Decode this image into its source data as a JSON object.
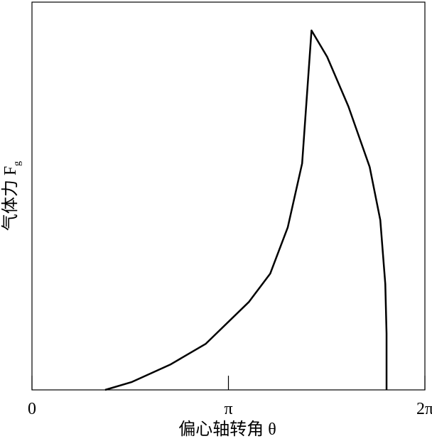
{
  "chart_data": {
    "type": "line",
    "x_label": "偏心轴转角 θ",
    "y_label": "气体力 F",
    "y_label_subscript": "g",
    "xlim": [
      0,
      6.2832
    ],
    "ylim": [
      0,
      1
    ],
    "xticks": [
      {
        "value": 0,
        "label": "0"
      },
      {
        "value": 3.1416,
        "label": "π"
      },
      {
        "value": 6.2832,
        "label": "2π"
      }
    ],
    "series": [
      {
        "color": "#000000",
        "x": [
          1.17,
          1.59,
          2.22,
          2.78,
          3.47,
          3.81,
          4.09,
          4.32,
          4.47,
          4.72,
          5.06,
          5.4,
          5.57,
          5.65,
          5.67,
          5.67
        ],
        "values": [
          0,
          0.02,
          0.066,
          0.119,
          0.227,
          0.3,
          0.419,
          0.584,
          0.927,
          0.859,
          0.731,
          0.575,
          0.438,
          0.273,
          0.145,
          0
        ]
      }
    ]
  }
}
